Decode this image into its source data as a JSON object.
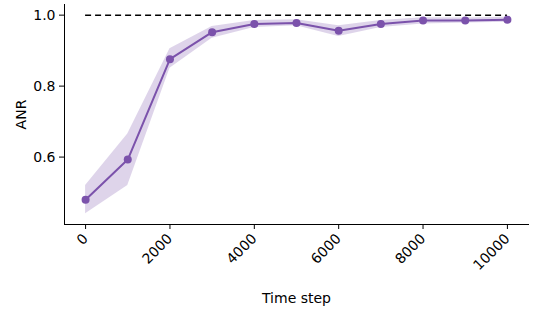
{
  "chart_data": {
    "type": "line",
    "x_label": "Time step",
    "y_label": "ANR",
    "x": [
      0,
      1000,
      2000,
      3000,
      4000,
      5000,
      6000,
      7000,
      8000,
      9000,
      10000
    ],
    "values": [
      0.48,
      0.593,
      0.876,
      0.952,
      0.975,
      0.978,
      0.956,
      0.975,
      0.985,
      0.985,
      0.987
    ],
    "lower": [
      0.44,
      0.52,
      0.85,
      0.935,
      0.965,
      0.97,
      0.94,
      0.965,
      0.975,
      0.978,
      0.98
    ],
    "upper": [
      0.52,
      0.665,
      0.905,
      0.968,
      0.985,
      0.987,
      0.97,
      0.985,
      0.993,
      0.992,
      0.994
    ],
    "color": "#7b52ab",
    "marker": "circle",
    "reference_line": {
      "value": 1.0,
      "color": "#000000",
      "line_style": "dashed"
    },
    "xlim": [
      -500,
      10500
    ],
    "ylim": [
      0.41,
      1.03
    ],
    "xticks": [
      0,
      2000,
      4000,
      6000,
      8000,
      10000
    ],
    "yticks": [
      0.6,
      0.8,
      {
        "value": 1.0,
        "label": "1.0"
      }
    ],
    "grid": false
  }
}
